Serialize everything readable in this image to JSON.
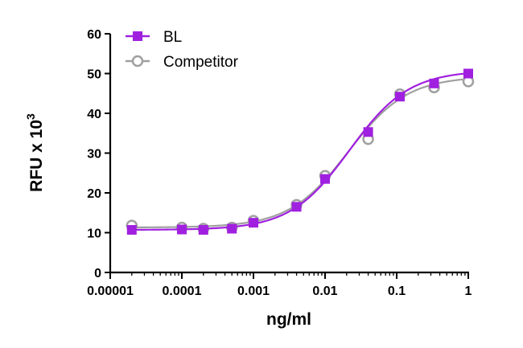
{
  "chart_data": {
    "type": "line",
    "xlabel": "ng/ml",
    "ylabel_main": "RFU x 10",
    "ylabel_exponent": "3",
    "x_scale": "log",
    "xlim": [
      1e-05,
      1
    ],
    "ylim": [
      0,
      60
    ],
    "x_ticks": [
      {
        "value": 1e-05,
        "label": "0.00001"
      },
      {
        "value": 0.0001,
        "label": "0.0001"
      },
      {
        "value": 0.001,
        "label": "0.001"
      },
      {
        "value": 0.01,
        "label": "0.01"
      },
      {
        "value": 0.1,
        "label": "0.1"
      },
      {
        "value": 1,
        "label": "1"
      }
    ],
    "y_ticks": [
      {
        "value": 0,
        "label": "0"
      },
      {
        "value": 10,
        "label": "10"
      },
      {
        "value": 20,
        "label": "20"
      },
      {
        "value": 30,
        "label": "30"
      },
      {
        "value": 40,
        "label": "40"
      },
      {
        "value": 50,
        "label": "50"
      },
      {
        "value": 60,
        "label": "60"
      }
    ],
    "grid": false,
    "legend_position": "top-left",
    "series": [
      {
        "name": "BL",
        "color": "#a020e0",
        "marker": "filled-square",
        "fit": {
          "bottom": 10.7,
          "top": 50.8,
          "ec50": 0.022,
          "hill": 1.05
        },
        "points": [
          {
            "x": 2e-05,
            "y": 10.7
          },
          {
            "x": 0.0001,
            "y": 10.8
          },
          {
            "x": 0.0002,
            "y": 10.7
          },
          {
            "x": 0.0005,
            "y": 11.0
          },
          {
            "x": 0.001,
            "y": 12.5
          },
          {
            "x": 0.004,
            "y": 16.5
          },
          {
            "x": 0.01,
            "y": 23.5
          },
          {
            "x": 0.04,
            "y": 35.3
          },
          {
            "x": 0.111,
            "y": 44.2
          },
          {
            "x": 0.333,
            "y": 47.5
          },
          {
            "x": 1,
            "y": 50.0
          }
        ]
      },
      {
        "name": "Competitor",
        "color": "#a0a0a0",
        "marker": "open-circle",
        "fit": {
          "bottom": 11.3,
          "top": 49.3,
          "ec50": 0.021,
          "hill": 1.05
        },
        "points": [
          {
            "x": 2e-05,
            "y": 11.8
          },
          {
            "x": 0.0001,
            "y": 11.3
          },
          {
            "x": 0.0002,
            "y": 11.0
          },
          {
            "x": 0.0005,
            "y": 11.3
          },
          {
            "x": 0.001,
            "y": 13.0
          },
          {
            "x": 0.004,
            "y": 17.0
          },
          {
            "x": 0.01,
            "y": 24.3
          },
          {
            "x": 0.04,
            "y": 33.5
          },
          {
            "x": 0.111,
            "y": 44.8
          },
          {
            "x": 0.333,
            "y": 46.5
          },
          {
            "x": 1,
            "y": 48.0
          }
        ]
      }
    ]
  }
}
